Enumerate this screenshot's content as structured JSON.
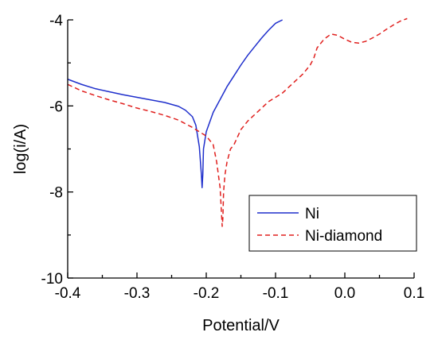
{
  "chart_data": {
    "type": "line",
    "xlabel": "Potential/V",
    "ylabel": "log(i/A)",
    "xlim": [
      -0.4,
      0.1
    ],
    "ylim": [
      -10,
      -4
    ],
    "xticks": [
      -0.4,
      -0.3,
      -0.2,
      -0.1,
      0.0,
      0.1
    ],
    "xtick_labels": [
      "-0.4",
      "-0.3",
      "-0.2",
      "-0.1",
      "0.0",
      "0.1"
    ],
    "yticks": [
      -10,
      -8,
      -6,
      -4
    ],
    "ytick_labels": [
      "-10",
      "-8",
      "-6",
      "-4"
    ],
    "grid": false,
    "legend_position": "bottom-right",
    "series": [
      {
        "name": "Ni",
        "color": "#1f2fcc",
        "dash": "solid",
        "x": [
          -0.4,
          -0.38,
          -0.36,
          -0.34,
          -0.32,
          -0.3,
          -0.28,
          -0.26,
          -0.24,
          -0.23,
          -0.22,
          -0.215,
          -0.21,
          -0.207,
          -0.206,
          -0.205,
          -0.204,
          -0.203,
          -0.2,
          -0.19,
          -0.18,
          -0.17,
          -0.16,
          -0.15,
          -0.14,
          -0.13,
          -0.12,
          -0.11,
          -0.1,
          -0.09
        ],
        "y": [
          -5.38,
          -5.5,
          -5.6,
          -5.67,
          -5.74,
          -5.8,
          -5.86,
          -5.92,
          -6.01,
          -6.1,
          -6.25,
          -6.45,
          -6.95,
          -7.6,
          -7.9,
          -7.6,
          -7.0,
          -6.9,
          -6.6,
          -6.15,
          -5.85,
          -5.55,
          -5.3,
          -5.05,
          -4.82,
          -4.62,
          -4.42,
          -4.24,
          -4.08,
          -4.0
        ]
      },
      {
        "name": "Ni-diamond",
        "color": "#e0201e",
        "dash": "dashed",
        "x": [
          -0.4,
          -0.38,
          -0.36,
          -0.34,
          -0.32,
          -0.3,
          -0.28,
          -0.26,
          -0.24,
          -0.22,
          -0.2,
          -0.19,
          -0.185,
          -0.18,
          -0.178,
          -0.177,
          -0.176,
          -0.175,
          -0.173,
          -0.17,
          -0.165,
          -0.16,
          -0.15,
          -0.14,
          -0.13,
          -0.12,
          -0.11,
          -0.1,
          -0.09,
          -0.08,
          -0.07,
          -0.06,
          -0.05,
          -0.045,
          -0.04,
          -0.03,
          -0.02,
          -0.01,
          0.0,
          0.01,
          0.02,
          0.03,
          0.04,
          0.05,
          0.06,
          0.07,
          0.08,
          0.09
        ],
        "y": [
          -5.5,
          -5.65,
          -5.76,
          -5.86,
          -5.95,
          -6.05,
          -6.13,
          -6.22,
          -6.33,
          -6.5,
          -6.7,
          -6.9,
          -7.3,
          -7.9,
          -8.5,
          -8.8,
          -8.6,
          -8.0,
          -7.6,
          -7.3,
          -7.0,
          -6.9,
          -6.55,
          -6.35,
          -6.2,
          -6.05,
          -5.9,
          -5.8,
          -5.7,
          -5.55,
          -5.4,
          -5.25,
          -5.05,
          -4.9,
          -4.65,
          -4.45,
          -4.33,
          -4.36,
          -4.45,
          -4.52,
          -4.54,
          -4.5,
          -4.42,
          -4.33,
          -4.22,
          -4.12,
          -4.03,
          -3.97
        ]
      }
    ]
  }
}
